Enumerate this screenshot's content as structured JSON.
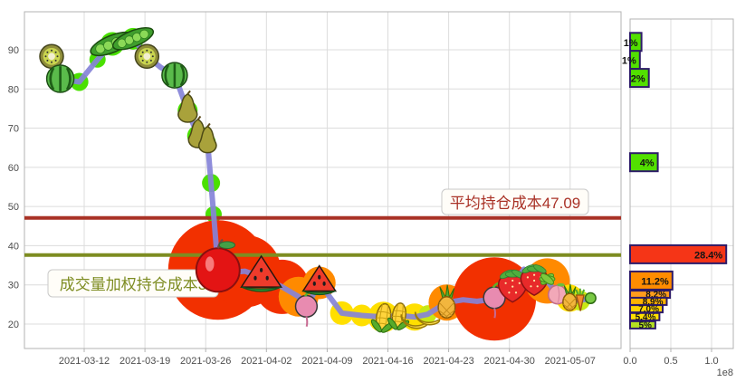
{
  "chart_data": [
    {
      "type": "line",
      "title": "",
      "xlabel": "",
      "ylabel": "",
      "x_tick_labels": [
        "2021-03-12",
        "2021-03-19",
        "2021-03-26",
        "2021-04-02",
        "2021-04-09",
        "2021-04-16",
        "2021-04-23",
        "2021-04-30",
        "2021-05-07"
      ],
      "y_ticks": [
        20,
        30,
        40,
        50,
        60,
        70,
        80,
        90
      ],
      "ylim": [
        13.5,
        99
      ],
      "grid": true,
      "line_color": "#8583d8",
      "avg_line": {
        "label": "平均持仓成本47.09",
        "value": 47.09,
        "color": "#a93226"
      },
      "vwap_line": {
        "label": "成交量加权持仓成本3",
        "value": 37.6,
        "color": "#7d8c21"
      },
      "bubble_colors": {
        "green": "#4ae000",
        "red": "#f23000",
        "orange": "#ff8a00",
        "yellow": "#ffdf00",
        "gold": "#ffc400",
        "yellowgreen": "#c8e816"
      },
      "points": [
        {
          "d": 0,
          "v": 88.3,
          "f": "kiwi",
          "s": 13,
          "b": "green",
          "r": 11
        },
        {
          "d": 1,
          "v": 82.6,
          "f": "watermelon",
          "s": 15,
          "b": "green",
          "r": 12
        },
        {
          "d": 3.2,
          "v": 81.8,
          "b": "green",
          "r": 10
        },
        {
          "d": 5.3,
          "v": 87.5,
          "b": "green",
          "r": 9
        },
        {
          "d": 7,
          "v": 91.5,
          "f": "peas",
          "s": 15,
          "b": "green",
          "r": 13
        },
        {
          "d": 9.4,
          "v": 92.8,
          "f": "peas",
          "s": 14,
          "b": "green",
          "r": 12
        },
        {
          "d": 11,
          "v": 88.3,
          "f": "kiwi",
          "s": 13,
          "b": "green",
          "r": 10
        },
        {
          "d": 12.6,
          "v": 85.5
        },
        {
          "d": 14.2,
          "v": 83.5,
          "f": "watermelon",
          "s": 14,
          "b": "green",
          "r": 12
        },
        {
          "d": 15.7,
          "v": 74.5,
          "f": "pear",
          "s": 14,
          "b": "green",
          "r": 11
        },
        {
          "d": 16.9,
          "v": 68,
          "f": "pear",
          "s": 14,
          "b": "green",
          "r": 12
        },
        {
          "d": 18,
          "v": 66.5,
          "f": "pear",
          "s": 13,
          "b": "green",
          "r": 9
        },
        {
          "d": 18.4,
          "v": 56,
          "b": "green",
          "r": 10
        },
        {
          "d": 18.7,
          "v": 48,
          "b": "green",
          "r": 9
        },
        {
          "d": 19,
          "v": 40,
          "b": "green",
          "r": 9
        },
        {
          "d": 19.2,
          "v": 33.8,
          "f": "apple",
          "s": 24,
          "b": "red",
          "r": 55
        },
        {
          "d": 20.7,
          "v": 33.2
        },
        {
          "d": 22.3,
          "v": 33.5,
          "b": "red",
          "r": 40
        },
        {
          "d": 24.2,
          "v": 32,
          "f": "melonslice",
          "s": 22
        },
        {
          "d": 26.6,
          "v": 29.5,
          "b": "red",
          "r": 30
        },
        {
          "d": 28.5,
          "v": 27,
          "b": "orange",
          "r": 22
        },
        {
          "d": 29.4,
          "v": 24.2,
          "f": "radish",
          "s": 14
        },
        {
          "d": 30.9,
          "v": 30.5,
          "f": "melonslice",
          "s": 18,
          "b": "orange",
          "r": 18
        },
        {
          "d": 33.5,
          "v": 22.8,
          "b": "yellow",
          "r": 13
        },
        {
          "d": 35.8,
          "v": 22.2,
          "b": "yellow",
          "r": 12
        },
        {
          "d": 38.3,
          "v": 21.8,
          "f": "corn",
          "s": 15,
          "b": "yellow",
          "r": 17
        },
        {
          "d": 40.1,
          "v": 22.2,
          "f": "corn",
          "s": 14
        },
        {
          "d": 41.9,
          "v": 21.8,
          "f": "banana",
          "s": 14,
          "b": "yellow",
          "r": 15
        },
        {
          "d": 43.4,
          "v": 22.5,
          "f": "banana",
          "s": 13,
          "b": "yellowgreen",
          "r": 10
        },
        {
          "d": 45.6,
          "v": 25.5,
          "f": "pineapple",
          "s": 15,
          "b": "orange",
          "r": 20
        },
        {
          "d": 47.5,
          "v": 26.2,
          "b": "yellow",
          "r": 12
        },
        {
          "d": 49.1,
          "v": 25.8,
          "b": "gold",
          "r": 10
        },
        {
          "d": 51.1,
          "v": 26.4,
          "f": "radish",
          "s": 14,
          "b": "red",
          "r": 46
        },
        {
          "d": 53.2,
          "v": 30,
          "f": "strawberry",
          "s": 19
        },
        {
          "d": 54.5,
          "v": 34
        },
        {
          "d": 55.7,
          "v": 31.5,
          "f": "strawberry",
          "s": 18
        },
        {
          "d": 57.2,
          "v": 31,
          "f": "carrotgreens",
          "s": 14,
          "b": "orange",
          "r": 25
        },
        {
          "d": 58.4,
          "v": 27.5,
          "f": "peach",
          "s": 12
        },
        {
          "d": 59.8,
          "v": 26.6,
          "f": "pineapple",
          "s": 12,
          "b": "yellow",
          "r": 15
        },
        {
          "d": 61,
          "v": 26,
          "f": "carrot",
          "s": 11,
          "b": "yellowgreen",
          "r": 11
        },
        {
          "d": 62.2,
          "v": 26.6,
          "f": "grape",
          "s": 9
        }
      ]
    },
    {
      "type": "bar",
      "orientation": "horizontal",
      "x_tick_labels": [
        "0.0",
        "0.5",
        "1.0"
      ],
      "scale_note": "1e8",
      "bar_border_color": "#2d1b69",
      "bars": [
        {
          "price": 92,
          "value_e8": 0.14,
          "label": "1%",
          "color": "#52e000",
          "thick": 1
        },
        {
          "price": 87.4,
          "value_e8": 0.12,
          "label": "1%",
          "color": "#52e000",
          "thick": 1
        },
        {
          "price": 82.8,
          "value_e8": 0.23,
          "label": "2%",
          "color": "#52e000",
          "thick": 1
        },
        {
          "price": 61.3,
          "value_e8": 0.34,
          "label": "4%",
          "color": "#52e000",
          "thick": 1
        },
        {
          "price": 37.8,
          "value_e8": 1.18,
          "label": "28.4%",
          "color": "#f53517",
          "thick": 1
        },
        {
          "price": 31.1,
          "value_e8": 0.52,
          "label": "11.2%",
          "color": "#ff8c00",
          "thick": 1
        },
        {
          "price": 27.6,
          "value_e8": 0.49,
          "label": "8.2%",
          "color": "#ff9d1c",
          "thick": 0
        },
        {
          "price": 25.8,
          "value_e8": 0.45,
          "label": "8.9%",
          "color": "#ffb300",
          "thick": 0
        },
        {
          "price": 23.9,
          "value_e8": 0.4,
          "label": "7.0%",
          "color": "#ffd400",
          "thick": 0
        },
        {
          "price": 21.9,
          "value_e8": 0.36,
          "label": "5.4%",
          "color": "#ffe000",
          "thick": 0
        },
        {
          "price": 19.8,
          "value_e8": 0.31,
          "label": "5%",
          "color": "#b4e021",
          "thick": 0
        }
      ]
    }
  ]
}
